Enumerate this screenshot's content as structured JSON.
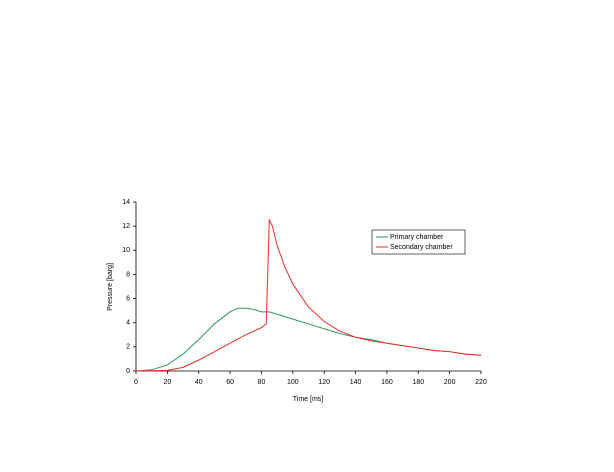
{
  "chart_data": {
    "type": "line",
    "xlabel": "Time [ms]",
    "ylabel": "Pressure [barg]",
    "xlim": [
      0,
      220
    ],
    "ylim": [
      0,
      14
    ],
    "xticks": [
      0,
      20,
      40,
      60,
      80,
      100,
      120,
      140,
      160,
      180,
      200,
      220
    ],
    "yticks": [
      0,
      2,
      4,
      6,
      8,
      10,
      12,
      14
    ],
    "grid": false,
    "legend": "upper right",
    "series": [
      {
        "name": "Primary chamber",
        "color": "#2e9a5c",
        "x": [
          0,
          10,
          20,
          30,
          40,
          50,
          60,
          65,
          70,
          75,
          80,
          85,
          90,
          100,
          110,
          120,
          130,
          140,
          150,
          160,
          170,
          180,
          190,
          200,
          210,
          220
        ],
        "values": [
          0,
          0.1,
          0.5,
          1.4,
          2.6,
          3.9,
          4.9,
          5.2,
          5.2,
          5.1,
          4.9,
          4.9,
          4.7,
          4.3,
          3.9,
          3.5,
          3.1,
          2.8,
          2.6,
          2.3,
          2.1,
          1.9,
          1.7,
          1.6,
          1.4,
          1.3
        ]
      },
      {
        "name": "Secondary chamber",
        "color": "#ee2b2b",
        "x": [
          0,
          20,
          30,
          40,
          50,
          60,
          70,
          80,
          83,
          84,
          85,
          87,
          90,
          95,
          100,
          110,
          120,
          130,
          140,
          150,
          160,
          170,
          180,
          190,
          200,
          210,
          220
        ],
        "values": [
          0,
          0.05,
          0.3,
          0.9,
          1.6,
          2.3,
          3.0,
          3.6,
          3.9,
          8,
          12.5,
          12,
          10.4,
          8.6,
          7.2,
          5.3,
          4.1,
          3.3,
          2.8,
          2.5,
          2.3,
          2.1,
          1.9,
          1.7,
          1.6,
          1.4,
          1.3
        ]
      }
    ]
  }
}
